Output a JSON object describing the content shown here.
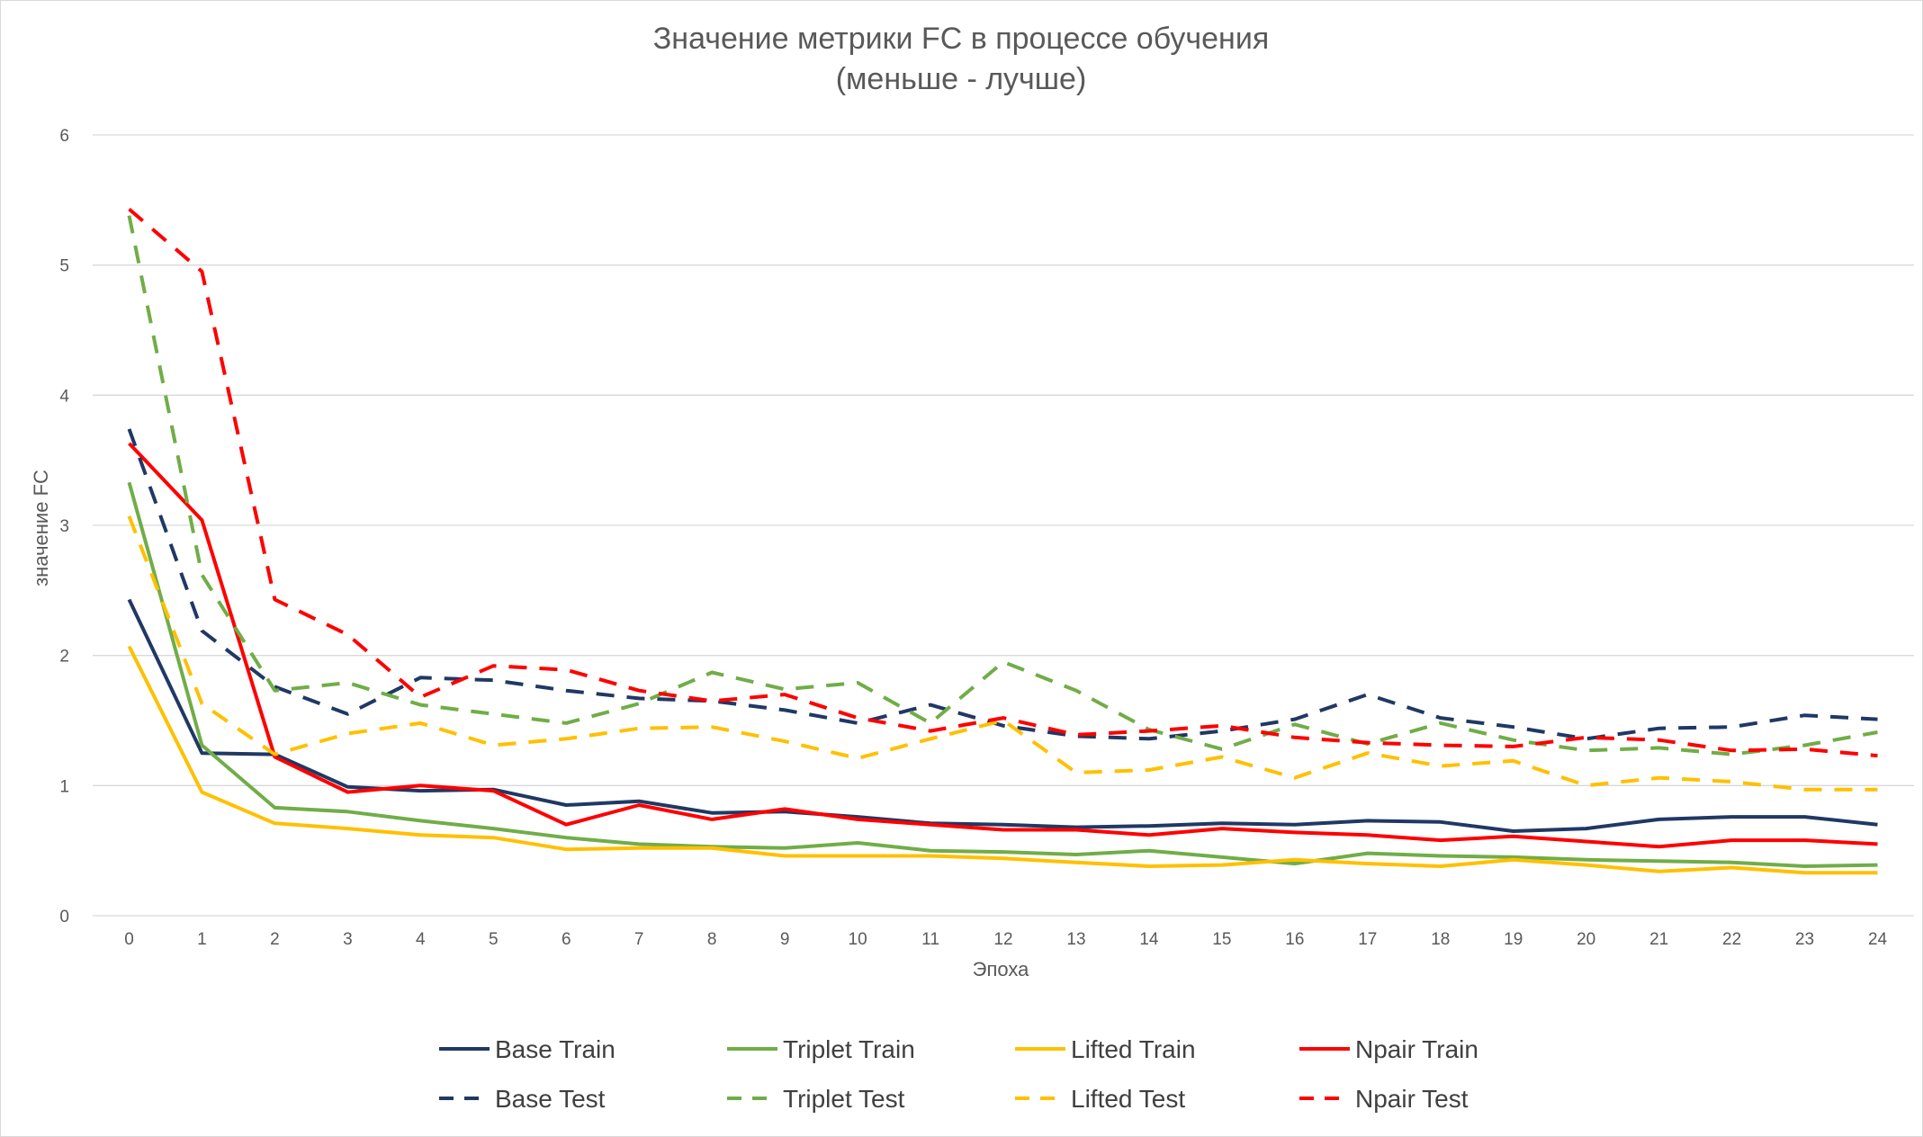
{
  "chart_data": {
    "type": "line",
    "title": "Значение метрики FC в процессе обучения",
    "subtitle": "(меньше - лучше)",
    "xlabel": "Эпоха",
    "ylabel": "значение FC",
    "ylim": [
      0,
      6
    ],
    "yticks": [
      "0",
      "1",
      "2",
      "3",
      "4",
      "5",
      "6"
    ],
    "grid": "horizontal",
    "legend": "bottom",
    "x": [
      0,
      1,
      2,
      3,
      4,
      5,
      6,
      7,
      8,
      9,
      10,
      11,
      12,
      13,
      14,
      15,
      16,
      17,
      18,
      19,
      20,
      21,
      22,
      23,
      24
    ],
    "series": [
      {
        "name": "Base Train",
        "color": "#203864",
        "dash": false,
        "values": [
          2.43,
          1.25,
          1.24,
          0.99,
          0.96,
          0.97,
          0.85,
          0.88,
          0.79,
          0.8,
          0.76,
          0.71,
          0.7,
          0.68,
          0.69,
          0.71,
          0.7,
          0.73,
          0.72,
          0.65,
          0.67,
          0.74,
          0.76,
          0.76,
          0.7
        ]
      },
      {
        "name": "Triplet Train",
        "color": "#70AD47",
        "dash": false,
        "values": [
          3.33,
          1.31,
          0.83,
          0.8,
          0.73,
          0.67,
          0.6,
          0.55,
          0.53,
          0.52,
          0.56,
          0.5,
          0.49,
          0.47,
          0.5,
          0.45,
          0.4,
          0.48,
          0.46,
          0.45,
          0.43,
          0.42,
          0.41,
          0.38,
          0.39
        ]
      },
      {
        "name": "Lifted Train",
        "color": "#FFC000",
        "dash": false,
        "values": [
          2.07,
          0.95,
          0.71,
          0.67,
          0.62,
          0.6,
          0.51,
          0.52,
          0.52,
          0.46,
          0.46,
          0.46,
          0.44,
          0.41,
          0.38,
          0.39,
          0.43,
          0.4,
          0.38,
          0.43,
          0.39,
          0.34,
          0.37,
          0.33,
          0.33
        ]
      },
      {
        "name": "Npair Train",
        "color": "#FF0000",
        "dash": false,
        "values": [
          3.63,
          3.04,
          1.22,
          0.95,
          1.0,
          0.96,
          0.7,
          0.85,
          0.74,
          0.82,
          0.74,
          0.7,
          0.66,
          0.66,
          0.62,
          0.67,
          0.64,
          0.62,
          0.58,
          0.61,
          0.57,
          0.53,
          0.58,
          0.58,
          0.55
        ]
      },
      {
        "name": "Base Test",
        "color": "#203864",
        "dash": true,
        "values": [
          3.74,
          2.19,
          1.76,
          1.55,
          1.83,
          1.81,
          1.73,
          1.67,
          1.65,
          1.58,
          1.48,
          1.62,
          1.46,
          1.38,
          1.36,
          1.42,
          1.51,
          1.7,
          1.52,
          1.45,
          1.36,
          1.44,
          1.45,
          1.54,
          1.51
        ]
      },
      {
        "name": "Triplet Test",
        "color": "#70AD47",
        "dash": true,
        "values": [
          5.38,
          2.62,
          1.73,
          1.79,
          1.62,
          1.55,
          1.48,
          1.63,
          1.87,
          1.74,
          1.79,
          1.48,
          1.95,
          1.73,
          1.43,
          1.28,
          1.47,
          1.32,
          1.48,
          1.35,
          1.27,
          1.29,
          1.24,
          1.31,
          1.41
        ]
      },
      {
        "name": "Lifted Test",
        "color": "#FFC000",
        "dash": true,
        "values": [
          3.07,
          1.63,
          1.24,
          1.4,
          1.48,
          1.31,
          1.36,
          1.44,
          1.45,
          1.34,
          1.21,
          1.36,
          1.5,
          1.1,
          1.12,
          1.22,
          1.06,
          1.25,
          1.15,
          1.19,
          1.0,
          1.06,
          1.03,
          0.97,
          0.97
        ]
      },
      {
        "name": "Npair Test",
        "color": "#FF0000",
        "dash": true,
        "values": [
          5.43,
          4.95,
          2.43,
          2.16,
          1.68,
          1.92,
          1.89,
          1.73,
          1.65,
          1.7,
          1.52,
          1.42,
          1.52,
          1.39,
          1.42,
          1.46,
          1.37,
          1.33,
          1.31,
          1.3,
          1.37,
          1.35,
          1.27,
          1.28,
          1.23
        ]
      }
    ]
  }
}
